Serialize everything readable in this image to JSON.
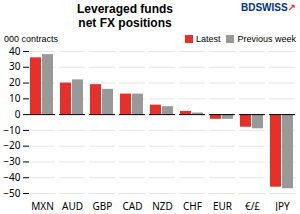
{
  "chart_data": {
    "type": "bar",
    "title": "Leveraged funds",
    "subtitle": "net FX positions",
    "ylabel": "000 contracts",
    "categories": [
      "MXN",
      "AUD",
      "GBP",
      "CAD",
      "NZD",
      "CHF",
      "EUR",
      "€/£",
      "JPY"
    ],
    "series": [
      {
        "name": "Latest",
        "color": "#e8302a",
        "values": [
          36,
          20,
          19,
          13,
          6,
          2,
          -3,
          -8,
          -46
        ]
      },
      {
        "name": "Previous week",
        "color": "#999999",
        "values": [
          38,
          22,
          16,
          13,
          5,
          1,
          -3,
          -9,
          -47
        ]
      }
    ],
    "ylim": [
      -50,
      40
    ],
    "yticks": [
      -50,
      -40,
      -30,
      -20,
      -10,
      0,
      10,
      20,
      30,
      40
    ],
    "grid": true,
    "legend": "upper right",
    "annotations": [
      {
        "text": "BD",
        "color": "#003087"
      },
      {
        "text": "SWISS",
        "color": "#003087"
      },
      {
        "text": "↗",
        "color": "#e8302a"
      }
    ]
  }
}
